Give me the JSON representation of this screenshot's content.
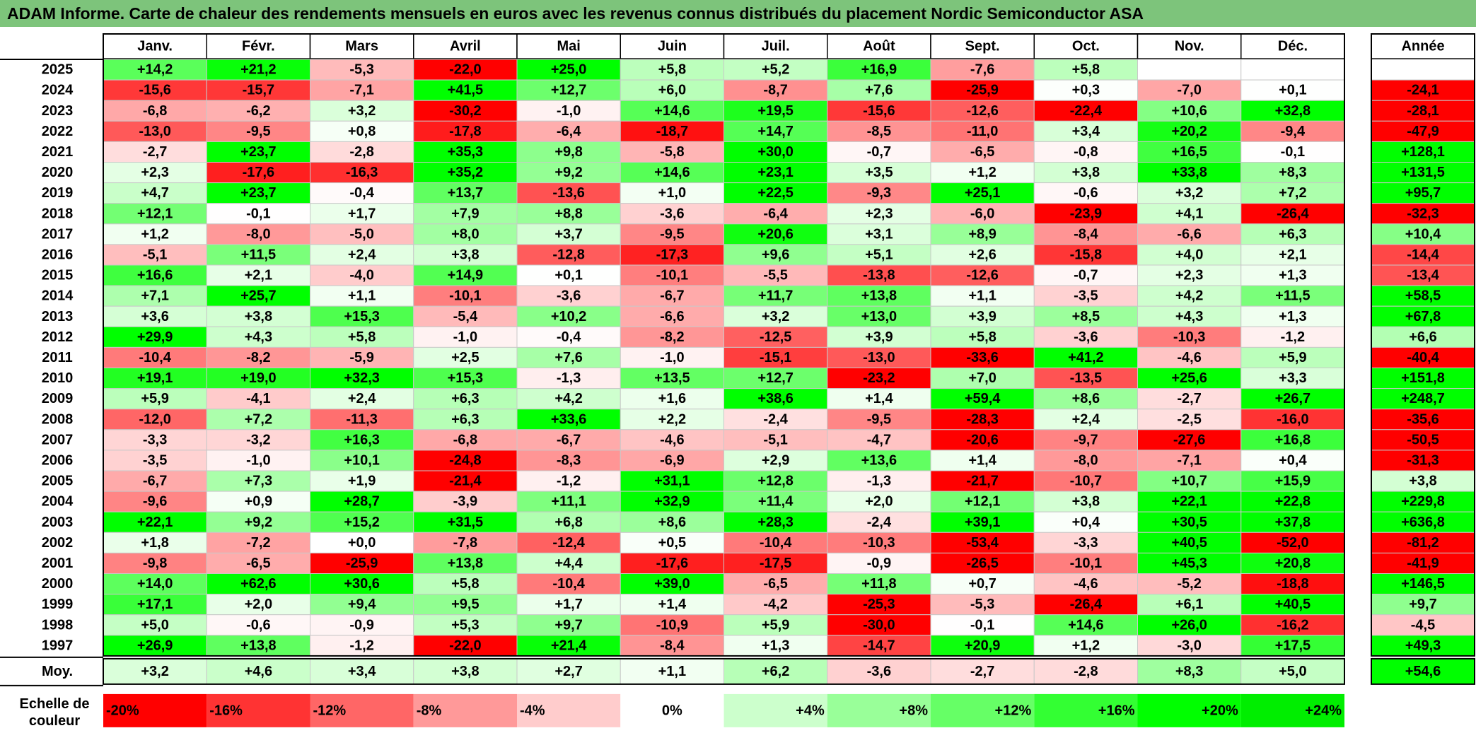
{
  "title": "ADAM Informe. Carte de chaleur des rendements mensuels en euros avec les revenus connus distribués du placement Nordic Semiconductor ASA",
  "chart_data": {
    "type": "heatmap",
    "months": [
      "Janv.",
      "Févr.",
      "Mars",
      "Avril",
      "Mai",
      "Juin",
      "Juil.",
      "Août",
      "Sept.",
      "Oct.",
      "Nov.",
      "Déc."
    ],
    "year_header": "Année",
    "avg_label": "Moy.",
    "rows": [
      {
        "year": "2025",
        "values": [
          "+14,2",
          "+21,2",
          "-5,3",
          "-22,0",
          "+25,0",
          "+5,8",
          "+5,2",
          "+16,9",
          "-7,6",
          "+5,8",
          "",
          ""
        ],
        "annual": ""
      },
      {
        "year": "2024",
        "values": [
          "-15,6",
          "-15,7",
          "-7,1",
          "+41,5",
          "+12,7",
          "+6,0",
          "-8,7",
          "+7,6",
          "-25,9",
          "+0,3",
          "-7,0",
          "+0,1"
        ],
        "annual": "-24,1"
      },
      {
        "year": "2023",
        "values": [
          "-6,8",
          "-6,2",
          "+3,2",
          "-30,2",
          "-1,0",
          "+14,6",
          "+19,5",
          "-15,6",
          "-12,6",
          "-22,4",
          "+10,6",
          "+32,8"
        ],
        "annual": "-28,1"
      },
      {
        "year": "2022",
        "values": [
          "-13,0",
          "-9,5",
          "+0,8",
          "-17,8",
          "-6,4",
          "-18,7",
          "+14,7",
          "-8,5",
          "-11,0",
          "+3,4",
          "+20,2",
          "-9,4"
        ],
        "annual": "-47,9"
      },
      {
        "year": "2021",
        "values": [
          "-2,7",
          "+23,7",
          "-2,8",
          "+35,3",
          "+9,8",
          "-5,8",
          "+30,0",
          "-0,7",
          "-6,5",
          "-0,8",
          "+16,5",
          "-0,1"
        ],
        "annual": "+128,1"
      },
      {
        "year": "2020",
        "values": [
          "+2,3",
          "-17,6",
          "-16,3",
          "+35,2",
          "+9,2",
          "+14,6",
          "+23,1",
          "+3,5",
          "+1,2",
          "+3,8",
          "+33,8",
          "+8,3"
        ],
        "annual": "+131,5"
      },
      {
        "year": "2019",
        "values": [
          "+4,7",
          "+23,7",
          "-0,4",
          "+13,7",
          "-13,6",
          "+1,0",
          "+22,5",
          "-9,3",
          "+25,1",
          "-0,6",
          "+3,2",
          "+7,2"
        ],
        "annual": "+95,7"
      },
      {
        "year": "2018",
        "values": [
          "+12,1",
          "-0,1",
          "+1,7",
          "+7,9",
          "+8,8",
          "-3,6",
          "-6,4",
          "+2,3",
          "-6,0",
          "-23,9",
          "+4,1",
          "-26,4"
        ],
        "annual": "-32,3"
      },
      {
        "year": "2017",
        "values": [
          "+1,2",
          "-8,0",
          "-5,0",
          "+8,0",
          "+3,7",
          "-9,5",
          "+20,6",
          "+3,1",
          "+8,9",
          "-8,4",
          "-6,6",
          "+6,3"
        ],
        "annual": "+10,4"
      },
      {
        "year": "2016",
        "values": [
          "-5,1",
          "+11,5",
          "+2,4",
          "+3,8",
          "-12,8",
          "-17,3",
          "+9,6",
          "+5,1",
          "+2,6",
          "-15,8",
          "+4,0",
          "+2,1"
        ],
        "annual": "-14,4"
      },
      {
        "year": "2015",
        "values": [
          "+16,6",
          "+2,1",
          "-4,0",
          "+14,9",
          "+0,1",
          "-10,1",
          "-5,5",
          "-13,8",
          "-12,6",
          "-0,7",
          "+2,3",
          "+1,3"
        ],
        "annual": "-13,4"
      },
      {
        "year": "2014",
        "values": [
          "+7,1",
          "+25,7",
          "+1,1",
          "-10,1",
          "-3,6",
          "-6,7",
          "+11,7",
          "+13,8",
          "+1,1",
          "-3,5",
          "+4,2",
          "+11,5"
        ],
        "annual": "+58,5"
      },
      {
        "year": "2013",
        "values": [
          "+3,6",
          "+3,8",
          "+15,3",
          "-5,4",
          "+10,2",
          "-6,6",
          "+3,2",
          "+13,0",
          "+3,9",
          "+8,5",
          "+4,3",
          "+1,3"
        ],
        "annual": "+67,8"
      },
      {
        "year": "2012",
        "values": [
          "+29,9",
          "+4,3",
          "+5,8",
          "-1,0",
          "-0,4",
          "-8,2",
          "-12,5",
          "+3,9",
          "+5,8",
          "-3,6",
          "-10,3",
          "-1,2"
        ],
        "annual": "+6,6"
      },
      {
        "year": "2011",
        "values": [
          "-10,4",
          "-8,2",
          "-5,9",
          "+2,5",
          "+7,6",
          "-1,0",
          "-15,1",
          "-13,0",
          "-33,6",
          "+41,2",
          "-4,6",
          "+5,9"
        ],
        "annual": "-40,4"
      },
      {
        "year": "2010",
        "values": [
          "+19,1",
          "+19,0",
          "+32,3",
          "+15,3",
          "-1,3",
          "+13,5",
          "+12,7",
          "-23,2",
          "+7,0",
          "-13,5",
          "+25,6",
          "+3,3"
        ],
        "annual": "+151,8"
      },
      {
        "year": "2009",
        "values": [
          "+5,9",
          "-4,1",
          "+2,4",
          "+6,3",
          "+4,2",
          "+1,6",
          "+38,6",
          "+1,4",
          "+59,4",
          "+8,6",
          "-2,7",
          "+26,7"
        ],
        "annual": "+248,7"
      },
      {
        "year": "2008",
        "values": [
          "-12,0",
          "+7,2",
          "-11,3",
          "+6,3",
          "+33,6",
          "+2,2",
          "-2,4",
          "-9,5",
          "-28,3",
          "+2,4",
          "-2,5",
          "-16,0"
        ],
        "annual": "-35,6"
      },
      {
        "year": "2007",
        "values": [
          "-3,3",
          "-3,2",
          "+16,3",
          "-6,8",
          "-6,7",
          "-4,6",
          "-5,1",
          "-4,7",
          "-20,6",
          "-9,7",
          "-27,6",
          "+16,8"
        ],
        "annual": "-50,5"
      },
      {
        "year": "2006",
        "values": [
          "-3,5",
          "-1,0",
          "+10,1",
          "-24,8",
          "-8,3",
          "-6,9",
          "+2,9",
          "+13,6",
          "+1,4",
          "-8,0",
          "-7,1",
          "+0,4"
        ],
        "annual": "-31,3"
      },
      {
        "year": "2005",
        "values": [
          "-6,7",
          "+7,3",
          "+1,9",
          "-21,4",
          "-1,2",
          "+31,1",
          "+12,8",
          "-1,3",
          "-21,7",
          "-10,7",
          "+10,7",
          "+15,9"
        ],
        "annual": "+3,8"
      },
      {
        "year": "2004",
        "values": [
          "-9,6",
          "+0,9",
          "+28,7",
          "-3,9",
          "+11,1",
          "+32,9",
          "+11,4",
          "+2,0",
          "+12,1",
          "+3,8",
          "+22,1",
          "+22,8"
        ],
        "annual": "+229,8"
      },
      {
        "year": "2003",
        "values": [
          "+22,1",
          "+9,2",
          "+15,2",
          "+31,5",
          "+6,8",
          "+8,6",
          "+28,3",
          "-2,4",
          "+39,1",
          "+0,4",
          "+30,5",
          "+37,8"
        ],
        "annual": "+636,8"
      },
      {
        "year": "2002",
        "values": [
          "+1,8",
          "-7,2",
          "+0,0",
          "-7,8",
          "-12,4",
          "+0,5",
          "-10,4",
          "-10,3",
          "-53,4",
          "-3,3",
          "+40,5",
          "-52,0"
        ],
        "annual": "-81,2"
      },
      {
        "year": "2001",
        "values": [
          "-9,8",
          "-6,5",
          "-25,9",
          "+13,8",
          "+4,4",
          "-17,6",
          "-17,5",
          "-0,9",
          "-26,5",
          "-10,1",
          "+45,3",
          "+20,8"
        ],
        "annual": "-41,9"
      },
      {
        "year": "2000",
        "values": [
          "+14,0",
          "+62,6",
          "+30,6",
          "+5,8",
          "-10,4",
          "+39,0",
          "-6,5",
          "+11,8",
          "+0,7",
          "-4,6",
          "-5,2",
          "-18,8"
        ],
        "annual": "+146,5"
      },
      {
        "year": "1999",
        "values": [
          "+17,1",
          "+2,0",
          "+9,4",
          "+9,5",
          "+1,7",
          "+1,4",
          "-4,2",
          "-25,3",
          "-5,3",
          "-26,4",
          "+6,1",
          "+40,5"
        ],
        "annual": "+9,7"
      },
      {
        "year": "1998",
        "values": [
          "+5,0",
          "-0,6",
          "-0,9",
          "+5,3",
          "+9,7",
          "-10,9",
          "+5,9",
          "-30,0",
          "-0,1",
          "+14,6",
          "+26,0",
          "-16,2"
        ],
        "annual": "-4,5"
      },
      {
        "year": "1997",
        "values": [
          "+26,9",
          "+13,8",
          "-1,2",
          "-22,0",
          "+21,4",
          "-8,4",
          "+1,3",
          "-14,7",
          "+20,9",
          "+1,2",
          "-3,0",
          "+17,5"
        ],
        "annual": "+49,3"
      }
    ],
    "averages": {
      "values": [
        "+3,2",
        "+4,6",
        "+3,4",
        "+3,8",
        "+2,7",
        "+1,1",
        "+6,2",
        "-3,6",
        "-2,7",
        "-2,8",
        "+8,3",
        "+5,0"
      ],
      "annual": "+54,6"
    },
    "scale_label_line1": "Echelle de",
    "scale_label_line2": "couleur",
    "scale": [
      {
        "label": "-20%",
        "color": "#ff0000"
      },
      {
        "label": "-16%",
        "color": "#ff3333"
      },
      {
        "label": "-12%",
        "color": "#ff6666"
      },
      {
        "label": "-8%",
        "color": "#ff9999"
      },
      {
        "label": "-4%",
        "color": "#ffcccc"
      },
      {
        "label": "0%",
        "color": "#ffffff"
      },
      {
        "label": "+4%",
        "color": "#ccffcc"
      },
      {
        "label": "+8%",
        "color": "#99ff99"
      },
      {
        "label": "+12%",
        "color": "#66ff66"
      },
      {
        "label": "+16%",
        "color": "#33ff33"
      },
      {
        "label": "+20%",
        "color": "#00ff00"
      },
      {
        "label": "+24%",
        "color": "#00ee00"
      }
    ],
    "colors": {
      "title_bg": "#7dc47b",
      "negative_max": "#ff0000",
      "positive_max": "#00ff00",
      "neutral": "#ffffff"
    }
  }
}
